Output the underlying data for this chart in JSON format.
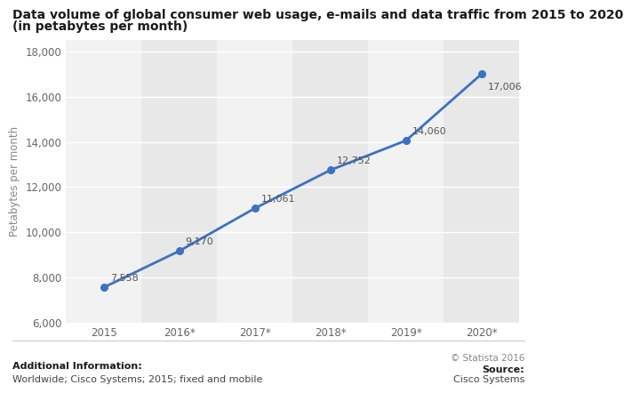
{
  "title_line1": "Data volume of global consumer web usage, e-mails and data traffic from 2015 to 2020",
  "title_line2": "(in petabytes per month)",
  "x_labels": [
    "2015",
    "2016*",
    "2017*",
    "2018*",
    "2019*",
    "2020*"
  ],
  "x_values": [
    0,
    1,
    2,
    3,
    4,
    5
  ],
  "y_values": [
    7558,
    9170,
    11061,
    12752,
    14060,
    17006
  ],
  "annotations": [
    "7,558",
    "9,170",
    "11,061",
    "12,752",
    "14,060",
    "17,006"
  ],
  "ylabel": "Petabytes per month",
  "ylim": [
    6000,
    18500
  ],
  "yticks": [
    6000,
    8000,
    10000,
    12000,
    14000,
    16000,
    18000
  ],
  "line_color": "#3a72c4",
  "marker_color": "#3a72c4",
  "bg_color": "#ffffff",
  "plot_bg_color": "#ffffff",
  "col_band_light": "#f0f0f0",
  "col_band_dark": "#e8e8e8",
  "grid_color": "#ffffff",
  "title_fontsize": 10.0,
  "axis_fontsize": 8.5,
  "annotation_fontsize": 8.0,
  "footer_left_bold": "Additional Information:",
  "footer_left": "Worldwide; Cisco Systems; 2015; fixed and mobile",
  "footer_right_top": "© Statista 2016",
  "footer_right_bottom": "Source:",
  "footer_source": "Cisco Systems"
}
